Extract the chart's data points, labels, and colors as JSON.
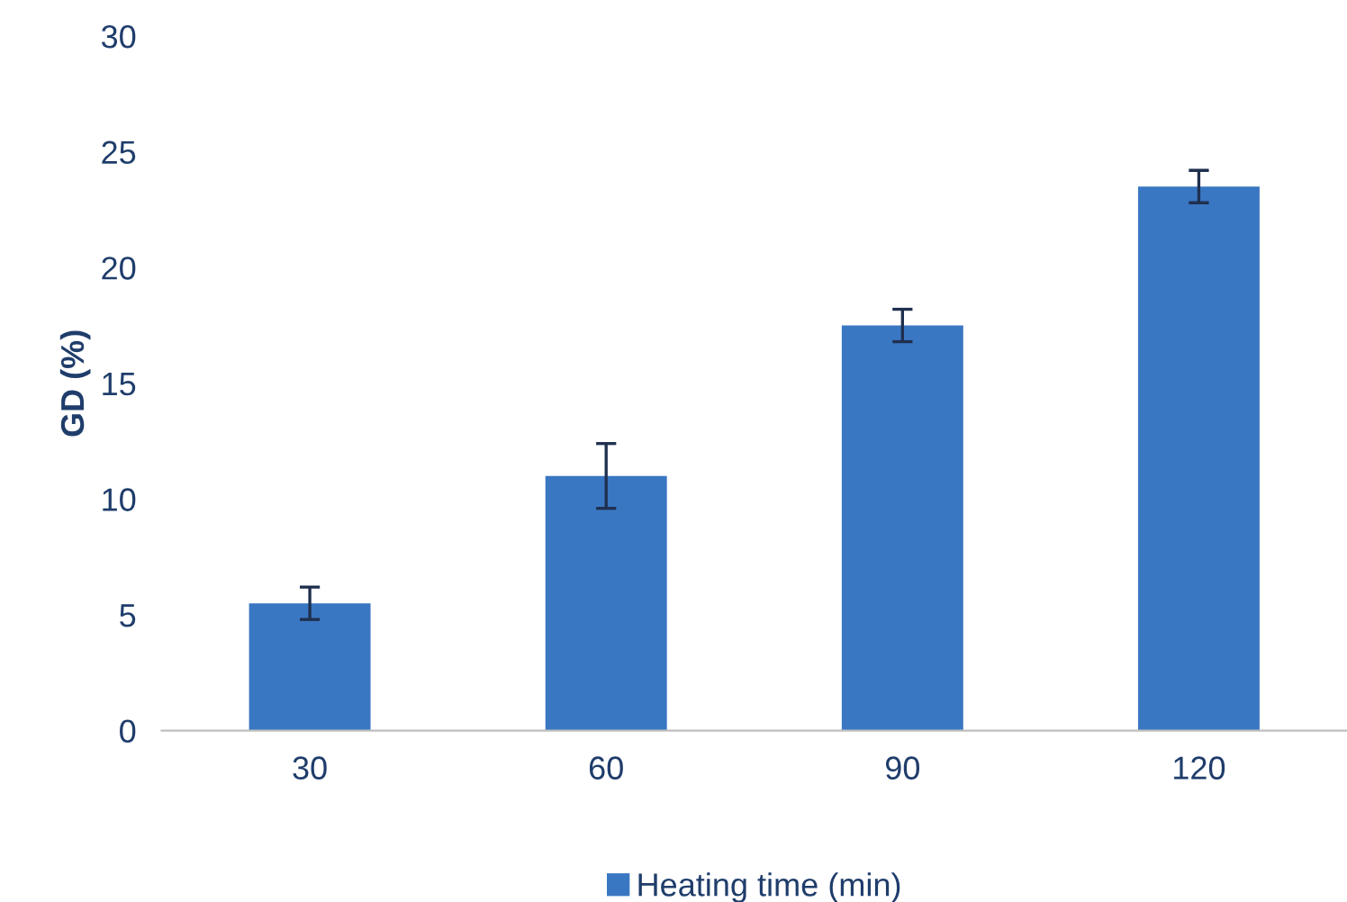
{
  "chart_data": {
    "type": "bar",
    "ylabel": "GD (%)",
    "categories": [
      "30",
      "60",
      "90",
      "120"
    ],
    "series": [
      {
        "name": "Heating time (min)",
        "color": "#3a77c2",
        "values": [
          5.5,
          11.0,
          17.5,
          23.5
        ],
        "errors": [
          0.7,
          1.4,
          0.7,
          0.7
        ]
      }
    ],
    "ylim": [
      0,
      30
    ],
    "yticks": [
      0,
      5,
      10,
      15,
      20,
      25,
      30
    ],
    "grid": false,
    "legend": "bottom"
  }
}
